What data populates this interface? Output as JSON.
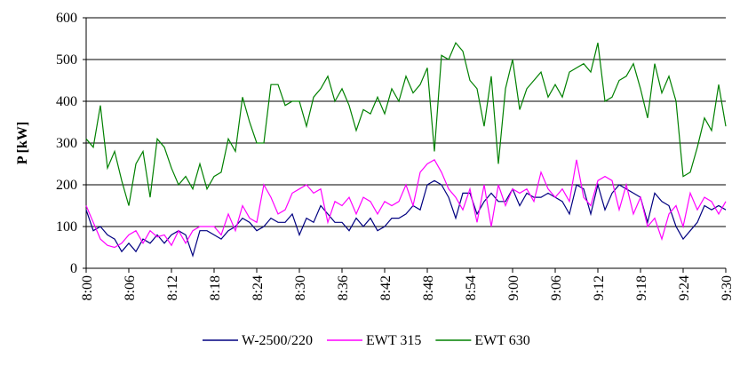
{
  "chart_data": {
    "type": "line",
    "ylabel": "P [kW]",
    "categories": [
      "8:00",
      null,
      null,
      null,
      null,
      null,
      "8:06",
      null,
      null,
      null,
      null,
      null,
      "8:12",
      null,
      null,
      null,
      null,
      null,
      "8:18",
      null,
      null,
      null,
      null,
      null,
      "8:24",
      null,
      null,
      null,
      null,
      null,
      "8:30",
      null,
      null,
      null,
      null,
      null,
      "8:36",
      null,
      null,
      null,
      null,
      null,
      "8:42",
      null,
      null,
      null,
      null,
      null,
      "8:48",
      null,
      null,
      null,
      null,
      null,
      "8:54",
      null,
      null,
      null,
      null,
      null,
      "9:00",
      null,
      null,
      null,
      null,
      null,
      "9:06",
      null,
      null,
      null,
      null,
      null,
      "9:12",
      null,
      null,
      null,
      null,
      null,
      "9:18",
      null,
      null,
      null,
      null,
      null,
      "9:24",
      null,
      null,
      null,
      null,
      null,
      "9:30"
    ],
    "series": [
      {
        "name": "W-2500/220",
        "color": "#000080",
        "values": [
          140,
          90,
          100,
          80,
          70,
          40,
          60,
          40,
          70,
          60,
          80,
          60,
          80,
          90,
          80,
          30,
          90,
          90,
          80,
          70,
          90,
          100,
          120,
          110,
          90,
          100,
          120,
          110,
          110,
          130,
          80,
          120,
          110,
          150,
          130,
          110,
          110,
          90,
          120,
          100,
          120,
          90,
          100,
          120,
          120,
          130,
          150,
          140,
          200,
          210,
          200,
          170,
          120,
          180,
          180,
          130,
          160,
          180,
          160,
          160,
          190,
          150,
          180,
          170,
          170,
          180,
          170,
          160,
          130,
          200,
          190,
          130,
          200,
          140,
          180,
          200,
          190,
          180,
          170,
          110,
          180,
          160,
          150,
          100,
          70,
          90,
          110,
          150,
          140,
          150,
          140
        ]
      },
      {
        "name": "EWT 315",
        "color": "#ff00ff",
        "values": [
          150,
          110,
          70,
          55,
          50,
          60,
          80,
          90,
          60,
          90,
          75,
          80,
          55,
          90,
          60,
          90,
          100,
          100,
          100,
          80,
          130,
          90,
          150,
          120,
          110,
          200,
          170,
          130,
          140,
          180,
          190,
          200,
          180,
          190,
          110,
          160,
          150,
          170,
          130,
          170,
          160,
          130,
          160,
          150,
          160,
          200,
          150,
          230,
          250,
          260,
          230,
          190,
          170,
          140,
          190,
          110,
          200,
          100,
          200,
          150,
          190,
          180,
          190,
          160,
          230,
          190,
          170,
          190,
          160,
          260,
          170,
          150,
          210,
          220,
          210,
          140,
          200,
          130,
          170,
          100,
          120,
          70,
          130,
          150,
          100,
          180,
          140,
          170,
          160,
          130,
          160
        ]
      },
      {
        "name": "EWT 630",
        "color": "#008000",
        "values": [
          310,
          290,
          390,
          240,
          280,
          210,
          150,
          250,
          280,
          170,
          310,
          290,
          240,
          200,
          220,
          190,
          250,
          190,
          220,
          230,
          310,
          280,
          410,
          350,
          300,
          300,
          440,
          440,
          390,
          400,
          400,
          340,
          410,
          430,
          460,
          400,
          430,
          390,
          330,
          380,
          370,
          410,
          370,
          430,
          400,
          460,
          420,
          440,
          480,
          280,
          510,
          500,
          540,
          520,
          450,
          430,
          340,
          460,
          250,
          430,
          500,
          380,
          430,
          450,
          470,
          410,
          440,
          410,
          470,
          480,
          490,
          470,
          540,
          400,
          410,
          450,
          460,
          490,
          430,
          360,
          490,
          420,
          460,
          400,
          220,
          230,
          290,
          360,
          330,
          440,
          340
        ]
      }
    ],
    "ylim": [
      0,
      600
    ],
    "yticks": [
      0,
      100,
      200,
      300,
      400,
      500,
      600
    ],
    "grid": true,
    "legend": "bottom"
  }
}
